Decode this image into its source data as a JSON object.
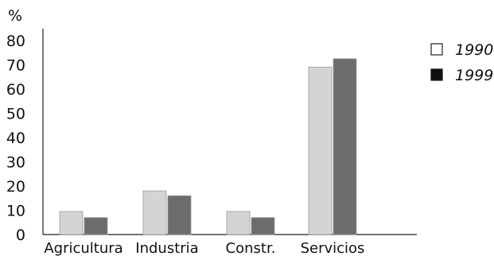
{
  "chart_data": {
    "type": "bar",
    "unit_label": "%",
    "categories": [
      "Agricultura",
      "Industria",
      "Constr.",
      "Servicios"
    ],
    "series": [
      {
        "name": "1990",
        "values": [
          9.5,
          18,
          9.5,
          69
        ],
        "color": "#d4d4d4"
      },
      {
        "name": "1999",
        "values": [
          7,
          16,
          7,
          72.5
        ],
        "color": "#6c6c6c"
      }
    ],
    "yticks": [
      0,
      10,
      20,
      30,
      40,
      50,
      60,
      70,
      80
    ],
    "ylim": [
      0,
      85
    ],
    "grid": false,
    "legend_position": "top-right"
  }
}
